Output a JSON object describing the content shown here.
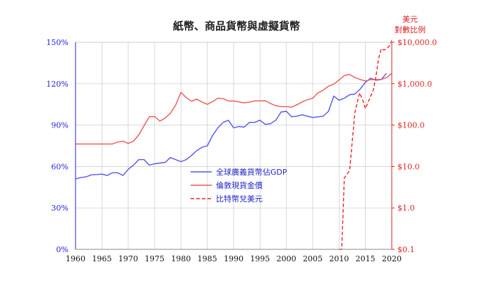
{
  "chart_data": {
    "type": "line",
    "title": "紙幣、商品貨幣與虛擬貨幣",
    "right_axis_title": [
      "美元",
      "對數比例"
    ],
    "x_ticks": [
      "1960",
      "1965",
      "1970",
      "1975",
      "1980",
      "1985",
      "1990",
      "1995",
      "2000",
      "2005",
      "2010",
      "2015",
      "2020"
    ],
    "xlim": [
      1960,
      2020
    ],
    "y_left": {
      "ticks": [
        "0%",
        "30%",
        "60%",
        "90%",
        "120%",
        "150%"
      ],
      "lim": [
        0,
        150
      ],
      "color": "#2222dd"
    },
    "y_right": {
      "ticks": [
        "$0.1",
        "$1.0",
        "$10.0",
        "$100.0",
        "$1,000.0",
        "$10,000.0"
      ],
      "scale": "log",
      "lim": [
        0.1,
        10000
      ],
      "color": "#dd2222"
    },
    "grid": true,
    "legend_position": "center-left",
    "series": [
      {
        "name": "全球廣義貨幣佔GDP",
        "axis": "left",
        "color": "#5555ee",
        "dash": false,
        "points": [
          [
            1960,
            51
          ],
          [
            1961,
            52
          ],
          [
            1962,
            52.5
          ],
          [
            1963,
            54
          ],
          [
            1964,
            54.2
          ],
          [
            1965,
            54.5
          ],
          [
            1966,
            53.5
          ],
          [
            1967,
            55.5
          ],
          [
            1968,
            55.5
          ],
          [
            1969,
            53.5
          ],
          [
            1970,
            58
          ],
          [
            1971,
            61
          ],
          [
            1972,
            65
          ],
          [
            1973,
            65
          ],
          [
            1974,
            61
          ],
          [
            1975,
            62
          ],
          [
            1976,
            62.5
          ],
          [
            1977,
            63
          ],
          [
            1978,
            66.5
          ],
          [
            1979,
            65
          ],
          [
            1980,
            63.5
          ],
          [
            1981,
            65
          ],
          [
            1982,
            68
          ],
          [
            1983,
            71.5
          ],
          [
            1984,
            74
          ],
          [
            1985,
            75
          ],
          [
            1986,
            82.5
          ],
          [
            1987,
            88
          ],
          [
            1988,
            92
          ],
          [
            1989,
            93.5
          ],
          [
            1990,
            88
          ],
          [
            1991,
            89
          ],
          [
            1992,
            88.5
          ],
          [
            1993,
            92
          ],
          [
            1994,
            92
          ],
          [
            1995,
            93.5
          ],
          [
            1996,
            90.5
          ],
          [
            1997,
            91
          ],
          [
            1998,
            93.5
          ],
          [
            1999,
            99.5
          ],
          [
            2000,
            100
          ],
          [
            2001,
            96
          ],
          [
            2002,
            96.5
          ],
          [
            2003,
            97.5
          ],
          [
            2004,
            96.5
          ],
          [
            2005,
            95.5
          ],
          [
            2006,
            96
          ],
          [
            2007,
            96.5
          ],
          [
            2008,
            100
          ],
          [
            2009,
            111
          ],
          [
            2010,
            108
          ],
          [
            2011,
            109.5
          ],
          [
            2012,
            112
          ],
          [
            2013,
            112.5
          ],
          [
            2014,
            116
          ],
          [
            2015,
            121
          ],
          [
            2016,
            124
          ],
          [
            2017,
            122.5
          ],
          [
            2018,
            123
          ],
          [
            2019,
            127.5
          ]
        ]
      },
      {
        "name": "倫敦現貨金價",
        "axis": "right",
        "color": "#ee5555",
        "dash": false,
        "points": [
          [
            1960,
            35
          ],
          [
            1965,
            35
          ],
          [
            1967,
            35
          ],
          [
            1968,
            39
          ],
          [
            1969,
            41
          ],
          [
            1970,
            36
          ],
          [
            1971,
            41
          ],
          [
            1972,
            58
          ],
          [
            1973,
            97
          ],
          [
            1974,
            159
          ],
          [
            1975,
            161
          ],
          [
            1976,
            125
          ],
          [
            1977,
            148
          ],
          [
            1978,
            193
          ],
          [
            1979,
            306
          ],
          [
            1980,
            615
          ],
          [
            1981,
            460
          ],
          [
            1982,
            376
          ],
          [
            1983,
            424
          ],
          [
            1984,
            361
          ],
          [
            1985,
            317
          ],
          [
            1986,
            368
          ],
          [
            1987,
            447
          ],
          [
            1988,
            437
          ],
          [
            1989,
            381
          ],
          [
            1990,
            383
          ],
          [
            1991,
            362
          ],
          [
            1992,
            344
          ],
          [
            1993,
            360
          ],
          [
            1994,
            384
          ],
          [
            1995,
            384
          ],
          [
            1996,
            388
          ],
          [
            1997,
            331
          ],
          [
            1998,
            294
          ],
          [
            1999,
            279
          ],
          [
            2000,
            279
          ],
          [
            2001,
            271
          ],
          [
            2002,
            310
          ],
          [
            2003,
            363
          ],
          [
            2004,
            409
          ],
          [
            2005,
            444
          ],
          [
            2006,
            603
          ],
          [
            2007,
            695
          ],
          [
            2008,
            872
          ],
          [
            2009,
            972
          ],
          [
            2010,
            1225
          ],
          [
            2011,
            1572
          ],
          [
            2012,
            1669
          ],
          [
            2013,
            1411
          ],
          [
            2014,
            1266
          ],
          [
            2015,
            1160
          ],
          [
            2016,
            1251
          ],
          [
            2017,
            1257
          ],
          [
            2018,
            1268
          ],
          [
            2019,
            1393
          ],
          [
            2020,
            1770
          ]
        ]
      },
      {
        "name": "比特幣兌美元",
        "axis": "right",
        "color": "#ee2222",
        "dash": true,
        "points": [
          [
            2010,
            0.1
          ],
          [
            2010.5,
            0.1
          ],
          [
            2011,
            5.3
          ],
          [
            2012,
            8
          ],
          [
            2013,
            200
          ],
          [
            2013.9,
            600
          ],
          [
            2014.5,
            400
          ],
          [
            2015,
            250
          ],
          [
            2016,
            500
          ],
          [
            2016.5,
            700
          ],
          [
            2017,
            1500
          ],
          [
            2017.5,
            4000
          ],
          [
            2018,
            7000
          ],
          [
            2018.5,
            6500
          ],
          [
            2019,
            7000
          ],
          [
            2019.5,
            8000
          ],
          [
            2020,
            11000
          ]
        ]
      }
    ]
  }
}
